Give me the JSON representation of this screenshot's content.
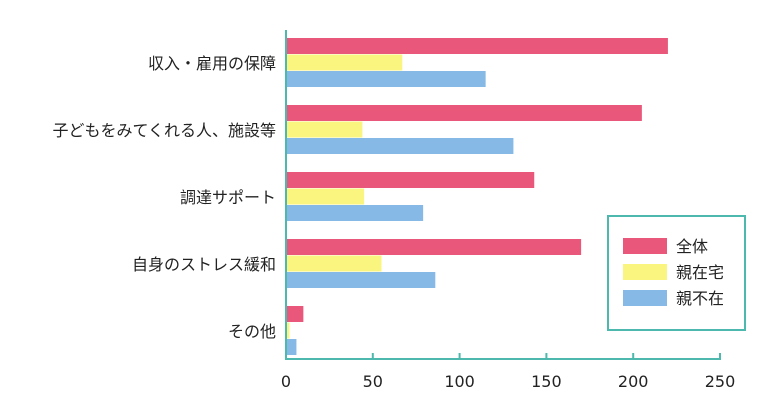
{
  "chart_data": {
    "type": "bar",
    "orientation": "horizontal",
    "categories": [
      "収入・雇用の保障",
      "子どもをみてくれる人、施設等",
      "調達サポート",
      "自身のストレス緩和",
      "その他"
    ],
    "series": [
      {
        "name": "全体",
        "color": "#E9587A",
        "values": [
          220,
          205,
          143,
          170,
          10
        ]
      },
      {
        "name": "親在宅",
        "color": "#FAF57E",
        "values": [
          67,
          44,
          45,
          55,
          2
        ]
      },
      {
        "name": "親不在",
        "color": "#87B9E6",
        "values": [
          115,
          131,
          79,
          86,
          6
        ]
      }
    ],
    "xlim": [
      0,
      250
    ],
    "xticks": [
      "0",
      "50",
      "100",
      "150",
      "200",
      "250"
    ],
    "grid": false,
    "legend_position": "right",
    "axis_color": "#4DB8AD"
  }
}
